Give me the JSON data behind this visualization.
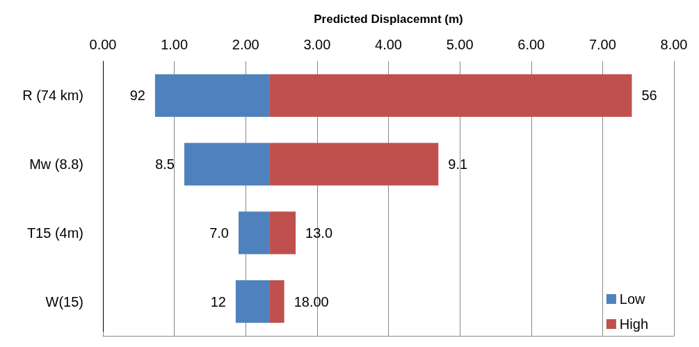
{
  "chart_data": {
    "type": "bar",
    "orientation": "horizontal",
    "xlabel": "Predicted Displacemnt (m)",
    "categories": [
      "R (74 km)",
      "Mw (8.8)",
      "T15 (4m)",
      "W(15)"
    ],
    "series": [
      {
        "name": "Low",
        "color": "#4f81bd",
        "base": [
          0.73,
          1.14,
          1.9,
          1.86
        ],
        "values": [
          1.6,
          1.19,
          0.43,
          0.47
        ]
      },
      {
        "name": "High",
        "color": "#c0504d",
        "base": [
          2.33,
          2.33,
          2.33,
          2.33
        ],
        "values": [
          5.08,
          2.37,
          0.37,
          0.21
        ]
      }
    ],
    "annotations": [
      {
        "text": "92",
        "x": 0.73,
        "y": "R (74 km)"
      },
      {
        "text": "8.5",
        "x": 1.14,
        "y": "Mw (8.8)"
      },
      {
        "text": "7.0",
        "x": 1.9,
        "y": "T15 (4m)"
      },
      {
        "text": "12",
        "x": 1.86,
        "y": "W(15)"
      },
      {
        "text": "56",
        "x": 7.41,
        "y": "R (74 km)"
      },
      {
        "text": "9.1",
        "x": 4.7,
        "y": "Mw (8.8)"
      },
      {
        "text": "13.0",
        "x": 2.7,
        "y": "T15 (4m)"
      },
      {
        "text": "18.00",
        "x": 2.54,
        "y": "W(15)"
      }
    ],
    "xlim": [
      0,
      8
    ],
    "xticks": [
      {
        "value": 0,
        "label": "0.00"
      },
      {
        "value": 1,
        "label": "1.00"
      },
      {
        "value": 2,
        "label": "2.00"
      },
      {
        "value": 3,
        "label": "3.00"
      },
      {
        "value": 4,
        "label": "4.00"
      },
      {
        "value": 5,
        "label": "5.00"
      },
      {
        "value": 6,
        "label": "6.00"
      },
      {
        "value": 7,
        "label": "7.00"
      },
      {
        "value": 8,
        "label": "8.00"
      }
    ],
    "grid": "x",
    "legend": "bottom right"
  }
}
